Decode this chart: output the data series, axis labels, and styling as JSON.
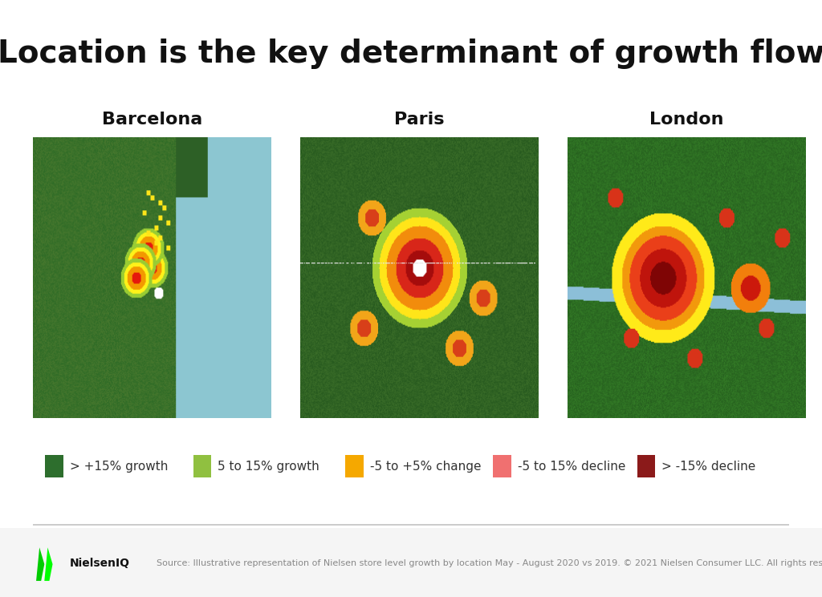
{
  "title": "Location is the key determinant of growth flow",
  "title_fontsize": 28,
  "title_fontweight": "bold",
  "title_color": "#111111",
  "bg_color": "#ffffff",
  "footer_line_color": "#cccccc",
  "cities": [
    "Barcelona",
    "Paris",
    "London"
  ],
  "city_fontsize": 16,
  "city_fontweight": "bold",
  "legend_items": [
    {
      "color": "#2d6e2d",
      "label": "> +15% growth"
    },
    {
      "color": "#90c040",
      "label": "5 to 15% growth"
    },
    {
      "color": "#f5a800",
      "label": "-5 to +5% change"
    },
    {
      "color": "#f07070",
      "label": "-5 to 15% decline"
    },
    {
      "color": "#8b1a1a",
      "label": "> -15% decline"
    }
  ],
  "legend_fontsize": 11,
  "legend_square_size": 18,
  "source_text": "Source: Illustrative representation of Nielsen store level growth by location May - August 2020 vs 2019. © 2021 Nielsen Consumer LLC. All rights reserved.",
  "source_fontsize": 8,
  "nielsen_logo_text": "NielsenIQ",
  "nielsen_logo_color": "#00ff00",
  "footer_bg": "#f5f5f5"
}
